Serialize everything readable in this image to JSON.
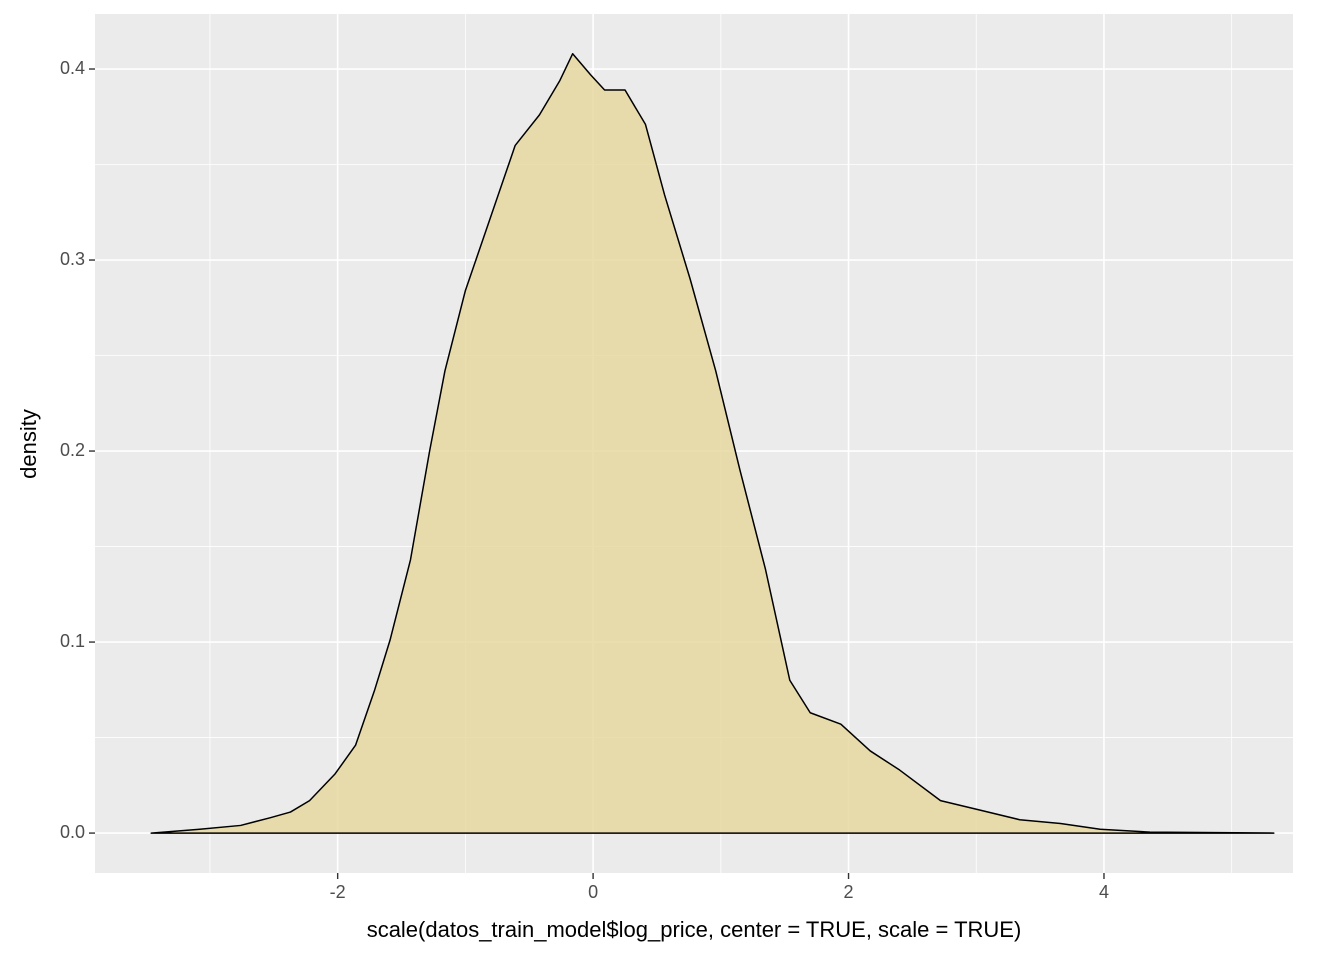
{
  "chart_data": {
    "type": "density",
    "x_label": "scale(datos_train_model$log_price, center = TRUE, scale = TRUE)",
    "y_label": "density",
    "x": [
      -3.46,
      -3.08,
      -2.76,
      -2.53,
      -2.37,
      -2.22,
      -2.02,
      -1.86,
      -1.71,
      -1.59,
      -1.43,
      -1.28,
      -1.16,
      -1.0,
      -0.81,
      -0.61,
      -0.42,
      -0.26,
      -0.16,
      -0.02,
      0.09,
      0.25,
      0.41,
      0.56,
      0.76,
      0.96,
      1.15,
      1.35,
      1.54,
      1.7,
      1.94,
      2.17,
      2.4,
      2.72,
      3.03,
      3.34,
      3.66,
      3.97,
      4.36,
      5.33
    ],
    "y": [
      0.0,
      0.002,
      0.004,
      0.008,
      0.011,
      0.017,
      0.031,
      0.046,
      0.075,
      0.101,
      0.143,
      0.2,
      0.242,
      0.284,
      0.321,
      0.36,
      0.376,
      0.394,
      0.408,
      0.397,
      0.389,
      0.389,
      0.371,
      0.334,
      0.29,
      0.242,
      0.19,
      0.138,
      0.08,
      0.063,
      0.057,
      0.043,
      0.033,
      0.017,
      0.012,
      0.007,
      0.005,
      0.002,
      0.0005,
      0.0
    ],
    "color": "#e8d8a0",
    "line_color": "#000000",
    "xlim": [
      -3.9,
      5.48
    ],
    "ylim": [
      -0.0209,
      0.4288
    ],
    "xticks": [
      -2,
      0,
      2,
      4
    ],
    "yticks": [
      {
        "value": 0,
        "label": "0.0"
      },
      0.1,
      0.2,
      0.3,
      0.4
    ],
    "xminor": [
      -3,
      -1,
      1,
      3,
      5
    ],
    "yminor": [
      0.05,
      0.15,
      0.25,
      0.35
    ],
    "grid": true
  }
}
